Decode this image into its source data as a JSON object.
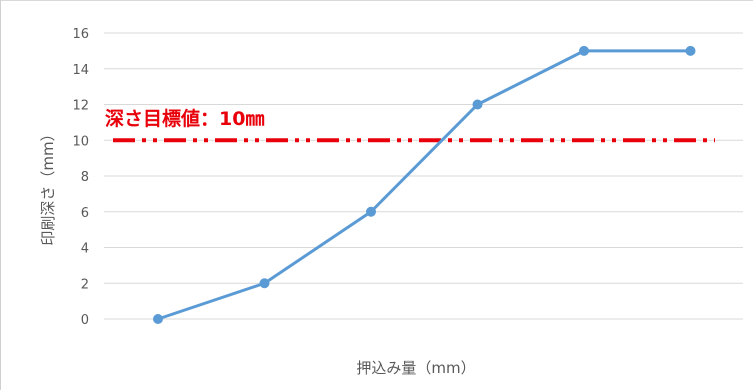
{
  "chart_data": {
    "type": "line",
    "title": "",
    "xlabel": "押込み量（mm）",
    "ylabel": "印刷深さ（mm）",
    "ylim": [
      0,
      16
    ],
    "yticks": [
      0,
      2,
      4,
      6,
      8,
      10,
      12,
      14,
      16
    ],
    "grid": true,
    "x_categories": 6,
    "series": [
      {
        "values": [
          0,
          2,
          6,
          12,
          15,
          15
        ],
        "color": "#5b9bd5",
        "marker": "circle"
      }
    ],
    "reference_line": {
      "value": 10,
      "label": "深さ目標値：10㎜",
      "color": "#e8000b",
      "style": "dash-dot-dot"
    }
  }
}
